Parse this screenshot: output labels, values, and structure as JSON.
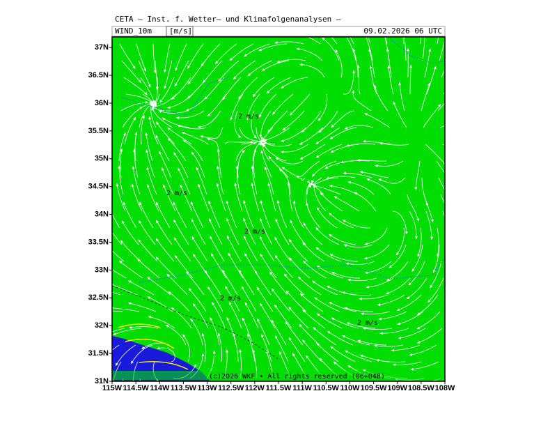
{
  "header": {
    "title": "CETA — Inst. f. Wetter— und Klimafolgenanalysen —",
    "variable": "WIND_10m",
    "unit": "[m/s]",
    "datetime": "09.02.2026  06 UTC"
  },
  "map": {
    "xlim": [
      115,
      108
    ],
    "ylim": [
      31,
      37.19
    ],
    "lat_ticks": [
      {
        "value": 31,
        "label": "31N"
      },
      {
        "value": 31.5,
        "label": "31.5N"
      },
      {
        "value": 32,
        "label": "32N"
      },
      {
        "value": 32.5,
        "label": "32.5N"
      },
      {
        "value": 33,
        "label": "33N"
      },
      {
        "value": 33.5,
        "label": "33.5N"
      },
      {
        "value": 34,
        "label": "34N"
      },
      {
        "value": 34.5,
        "label": "34.5N"
      },
      {
        "value": 35,
        "label": "35N"
      },
      {
        "value": 35.5,
        "label": "35.5N"
      },
      {
        "value": 36,
        "label": "36N"
      },
      {
        "value": 36.5,
        "label": "36.5N"
      },
      {
        "value": 37,
        "label": "37N"
      }
    ],
    "lon_ticks": [
      {
        "value": 115,
        "label": "115W"
      },
      {
        "value": 114.5,
        "label": "114.5W"
      },
      {
        "value": 114,
        "label": "114W"
      },
      {
        "value": 113.5,
        "label": "113.5W"
      },
      {
        "value": 113,
        "label": "113W"
      },
      {
        "value": 112.5,
        "label": "112.5W"
      },
      {
        "value": 112,
        "label": "112W"
      },
      {
        "value": 111.5,
        "label": "111.5W"
      },
      {
        "value": 111,
        "label": "111W"
      },
      {
        "value": 110.5,
        "label": "110.5W"
      },
      {
        "value": 110,
        "label": "110W"
      },
      {
        "value": 109.5,
        "label": "109.5W"
      },
      {
        "value": 109,
        "label": "109W"
      },
      {
        "value": 108.5,
        "label": "108.5W"
      },
      {
        "value": 108,
        "label": "108W"
      }
    ],
    "labels": [
      "2 m/s",
      "2 m/s",
      "2 m/s",
      "2 m/s",
      "2 m/s"
    ]
  },
  "footer": {
    "copyright": "(c)2026 WKF • All rights reserved (06+048)"
  }
}
